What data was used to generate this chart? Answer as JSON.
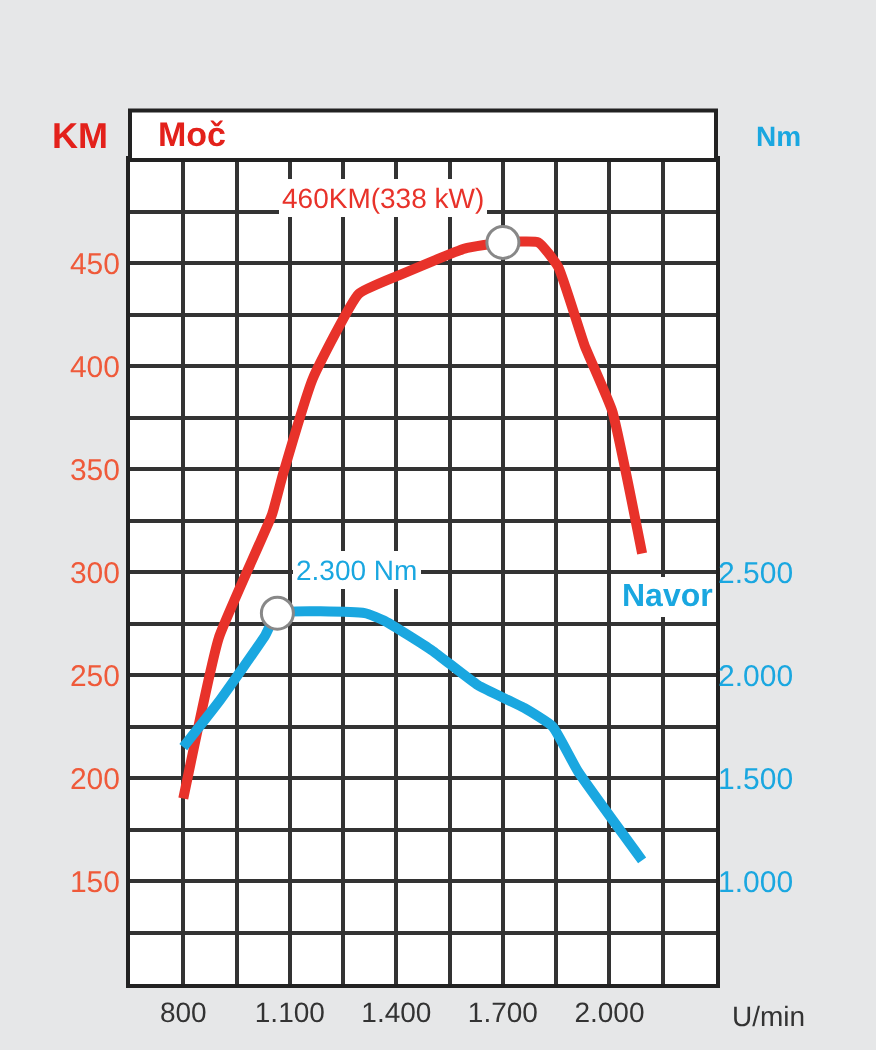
{
  "chart_data": {
    "type": "line",
    "xlabel": "U/min",
    "ylabel": "KM",
    "y2label": "Nm",
    "x": [
      800,
      900,
      1050,
      1080,
      1165,
      1294,
      1407,
      1592,
      1700,
      1800,
      1856,
      1930,
      2008,
      2092
    ],
    "series": [
      {
        "name": "Moč",
        "color": "#e8322a",
        "values": [
          190,
          268,
          328,
          347,
          394,
          435,
          444,
          457,
          460,
          460,
          448,
          410,
          378,
          309
        ]
      },
      {
        "name": "Navor",
        "color": "#1aa7e0",
        "axis": "y2",
        "x": [
          800,
          900,
          1030,
          1065,
          1311,
          1370,
          1500,
          1630,
          1760,
          1840,
          1912,
          2092
        ],
        "values": [
          1650,
          1870,
          2190,
          2300,
          2300,
          2260,
          2120,
          1950,
          1840,
          1750,
          1530,
          1100
        ]
      }
    ],
    "annotations": [
      "460KM(338 kW)",
      "2.300 Nm"
    ],
    "xlim": [
      650,
      2300
    ],
    "xticks": [
      800,
      {
        "value": 1100,
        "label": "1.100"
      },
      {
        "value": 1400,
        "label": "1.400"
      },
      {
        "value": 1700,
        "label": "1.700"
      },
      {
        "value": 2000,
        "label": "2.000"
      }
    ],
    "ylim": [
      100,
      500
    ],
    "yticks": [
      150,
      200,
      250,
      300,
      350,
      400,
      450
    ],
    "y2lim": [
      500,
      4500
    ],
    "y2ticks": [
      {
        "value": 1000,
        "label": "1.000"
      },
      {
        "value": 1500,
        "label": "1.500"
      },
      {
        "value": 2000,
        "label": "2.000"
      },
      {
        "value": 2500,
        "label": "2.500"
      }
    ],
    "grid": true,
    "legend": false,
    "line_style": "solid"
  }
}
